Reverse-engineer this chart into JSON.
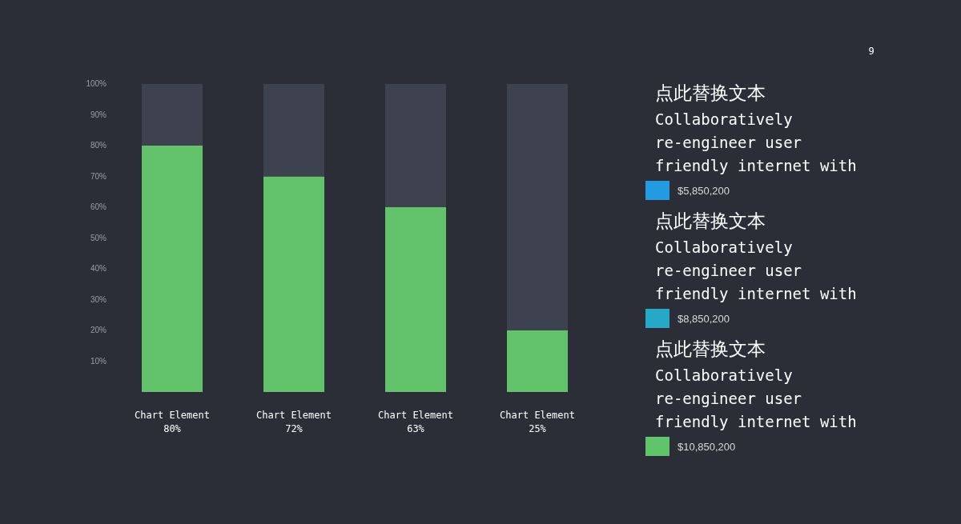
{
  "chart_data": {
    "type": "bar",
    "stacked": true,
    "categories": [
      "Chart Element 80%",
      "Chart Element 72%",
      "Chart Element 63%",
      "Chart Element 25%"
    ],
    "series": [
      {
        "color": "#62c36a",
        "values": [
          80,
          70,
          60,
          20
        ]
      },
      {
        "color": "#3e424e",
        "values": [
          20,
          30,
          40,
          80
        ]
      }
    ],
    "ylim": [
      0,
      100
    ],
    "yticks": [
      {
        "value": 10,
        "label": "10%"
      },
      {
        "value": 20,
        "label": "20%"
      },
      {
        "value": 30,
        "label": "30%"
      },
      {
        "value": 40,
        "label": "40%"
      },
      {
        "value": 50,
        "label": "50%"
      },
      {
        "value": 60,
        "label": "60%"
      },
      {
        "value": 70,
        "label": "70%"
      },
      {
        "value": 80,
        "label": "80%"
      },
      {
        "value": 90,
        "label": "90%"
      },
      {
        "value": 100,
        "label": "100%"
      }
    ],
    "grid": false,
    "annotations": [
      "9",
      "点此替换文本",
      "Collaboratively re-engineer user friendly internet with",
      "$5,850,200",
      "点此替换文本",
      "Collaboratively re-engineer user friendly internet with",
      "$8,850,200",
      "点此替换文本",
      "Collaboratively re-engineer user friendly internet with",
      "$10,850,200"
    ]
  }
}
